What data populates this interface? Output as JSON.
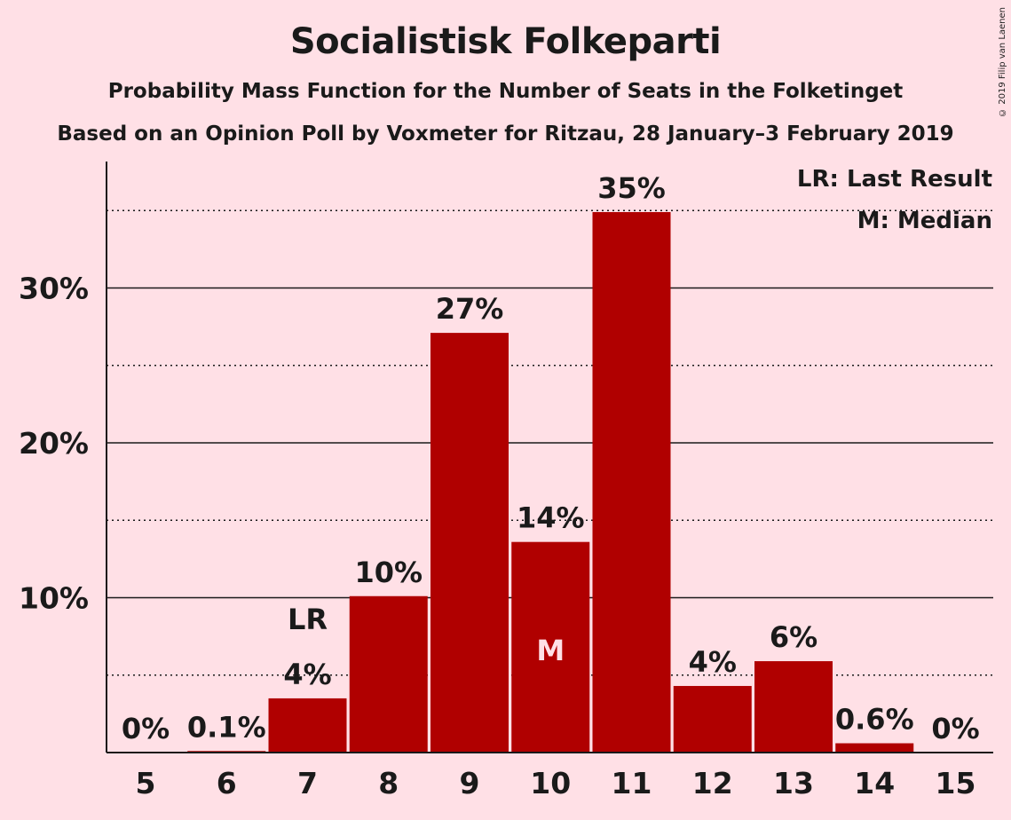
{
  "chart_data": {
    "type": "bar",
    "title": "Socialistisk Folkeparti",
    "subtitle": "Probability Mass Function for the Number of Seats in the Folketinget",
    "subtitle2": "Based on an Opinion Poll by Voxmeter for Ritzau, 28 January–3 February 2019",
    "categories": [
      "5",
      "6",
      "7",
      "8",
      "9",
      "10",
      "11",
      "12",
      "13",
      "14",
      "15"
    ],
    "values": [
      0,
      0.1,
      3.5,
      10.1,
      27.1,
      13.6,
      34.9,
      4.3,
      5.9,
      0.6,
      0
    ],
    "value_labels": [
      "0%",
      "0.1%",
      "4%",
      "10%",
      "27%",
      "14%",
      "35%",
      "4%",
      "6%",
      "0.6%",
      "0%"
    ],
    "yticks": [
      10,
      20,
      30
    ],
    "ytick_labels": [
      "10%",
      "20%",
      "30%"
    ],
    "ylim": [
      0,
      38
    ],
    "dotted_gridlines": [
      5,
      15,
      25,
      35
    ],
    "last_result": {
      "category": "7",
      "label": "LR"
    },
    "median": {
      "category": "10",
      "label": "M"
    },
    "legend": [
      "LR: Last Result",
      "M: Median"
    ],
    "legend_position": "top-right",
    "xlabel": "",
    "ylabel": "",
    "colors": {
      "bar": "#B00000",
      "background": "#FFE0E6",
      "text": "#1a1a1a",
      "median_label": "#FFE0E6"
    }
  },
  "copyright": "© 2019 Filip van Laenen"
}
